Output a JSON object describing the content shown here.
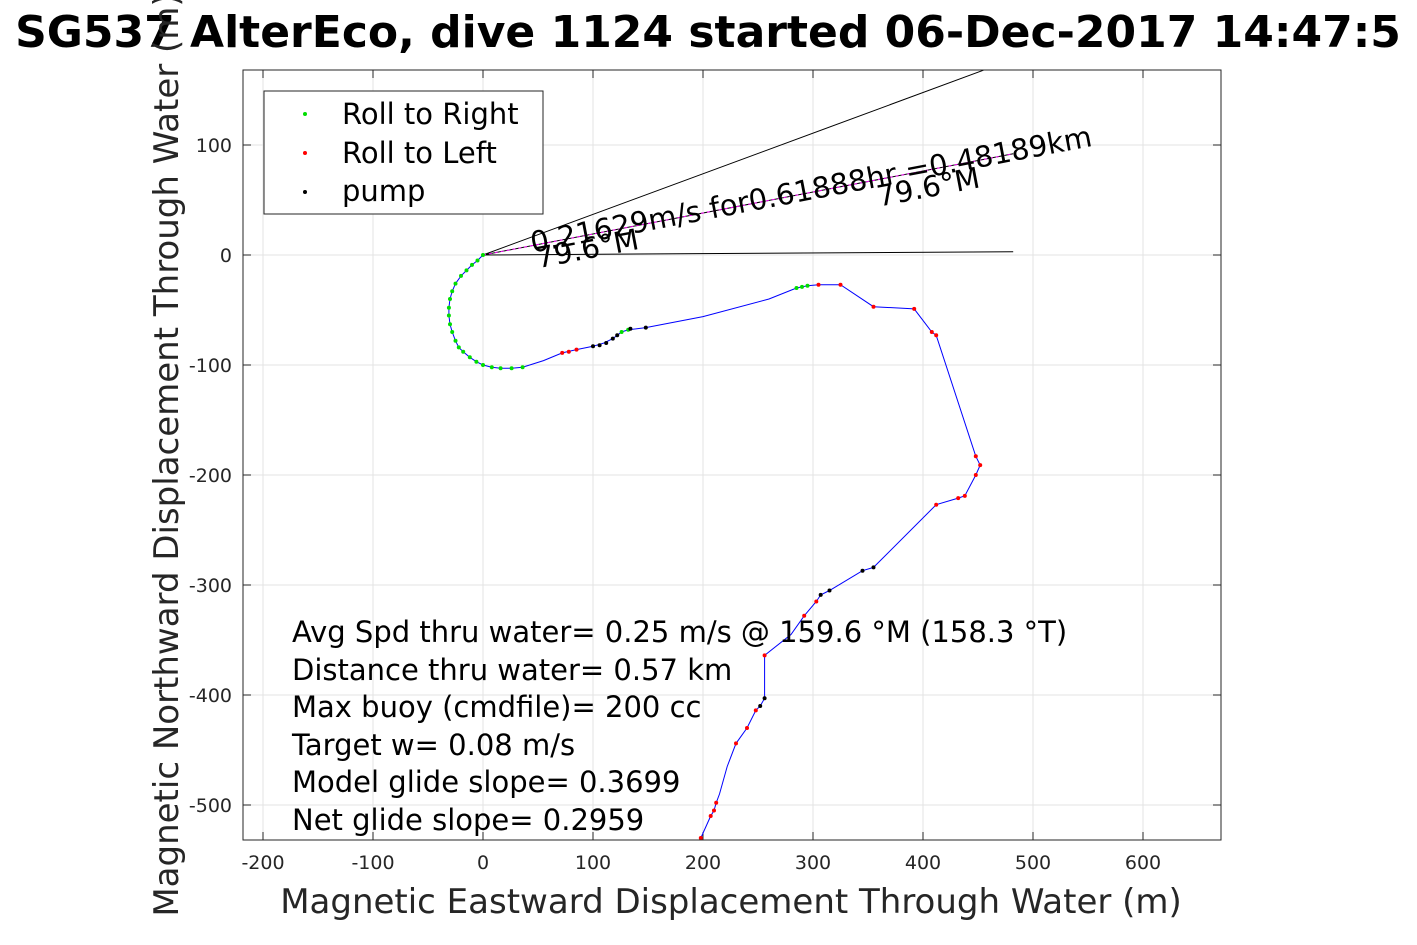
{
  "chart_data": {
    "type": "scatter",
    "title": "SG537 AlterEco, dive 1124 started 06-Dec-2017 14:47:5",
    "xlabel": "Magnetic Eastward Displacement Through Water (m)",
    "ylabel": "Magnetic Northward Displacement Through Water (m)",
    "xlim": [
      -220,
      670
    ],
    "ylim": [
      -530,
      168
    ],
    "xticks": [
      -200,
      -100,
      0,
      100,
      200,
      300,
      400,
      500,
      600
    ],
    "yticks": [
      -500,
      -400,
      -300,
      -200,
      -100,
      0,
      100
    ],
    "grid": true,
    "legend_position": "top-left",
    "legend": [
      "Roll to Right",
      "Roll to Left",
      "pump"
    ],
    "track": [
      [
        0,
        0
      ],
      [
        -5,
        -5
      ],
      [
        -10,
        -9
      ],
      [
        -15,
        -14
      ],
      [
        -20,
        -19
      ],
      [
        -25,
        -26
      ],
      [
        -28,
        -33
      ],
      [
        -30,
        -40
      ],
      [
        -31,
        -48
      ],
      [
        -31,
        -55
      ],
      [
        -30,
        -63
      ],
      [
        -28,
        -70
      ],
      [
        -25,
        -78
      ],
      [
        -22,
        -84
      ],
      [
        -18,
        -88
      ],
      [
        -12,
        -93
      ],
      [
        -6,
        -97
      ],
      [
        0,
        -100
      ],
      [
        8,
        -102
      ],
      [
        16,
        -103
      ],
      [
        26,
        -103
      ],
      [
        36,
        -102
      ],
      [
        55,
        -96
      ],
      [
        72,
        -89
      ],
      [
        85,
        -86
      ],
      [
        100,
        -83
      ],
      [
        110,
        -80
      ],
      [
        118,
        -76
      ],
      [
        122,
        -73
      ],
      [
        126,
        -70
      ],
      [
        132,
        -68
      ],
      [
        148,
        -66
      ],
      [
        200,
        -56
      ],
      [
        260,
        -40
      ],
      [
        285,
        -30
      ],
      [
        295,
        -28
      ],
      [
        305,
        -27
      ],
      [
        325,
        -27
      ],
      [
        355,
        -47
      ],
      [
        392,
        -49
      ],
      [
        408,
        -70
      ],
      [
        412,
        -73
      ],
      [
        448,
        -183
      ],
      [
        452,
        -191
      ],
      [
        448,
        -200
      ],
      [
        438,
        -219
      ],
      [
        432,
        -221
      ],
      [
        412,
        -227
      ],
      [
        355,
        -284
      ],
      [
        345,
        -287
      ],
      [
        315,
        -305
      ],
      [
        307,
        -309
      ],
      [
        303,
        -315
      ],
      [
        292,
        -328
      ],
      [
        280,
        -345
      ],
      [
        256,
        -364
      ],
      [
        256,
        -403
      ],
      [
        252,
        -410
      ],
      [
        248,
        -414
      ],
      [
        240,
        -430
      ],
      [
        230,
        -444
      ],
      [
        222,
        -465
      ],
      [
        215,
        -490
      ],
      [
        212,
        -498
      ],
      [
        210,
        -505
      ],
      [
        207,
        -510
      ],
      [
        198,
        -530
      ]
    ],
    "roll_to_right": [
      [
        0,
        0
      ],
      [
        -5,
        -5
      ],
      [
        -10,
        -9
      ],
      [
        -15,
        -14
      ],
      [
        -20,
        -19
      ],
      [
        -25,
        -26
      ],
      [
        -28,
        -33
      ],
      [
        -30,
        -40
      ],
      [
        -31,
        -48
      ],
      [
        -31,
        -55
      ],
      [
        -30,
        -63
      ],
      [
        -28,
        -70
      ],
      [
        -25,
        -78
      ],
      [
        -22,
        -84
      ],
      [
        -18,
        -88
      ],
      [
        -12,
        -93
      ],
      [
        -6,
        -97
      ],
      [
        0,
        -100
      ],
      [
        8,
        -102
      ],
      [
        16,
        -103
      ],
      [
        26,
        -103
      ],
      [
        36,
        -102
      ],
      [
        126,
        -70
      ],
      [
        132,
        -68
      ],
      [
        285,
        -30
      ],
      [
        290,
        -29
      ],
      [
        295,
        -28
      ]
    ],
    "roll_to_left": [
      [
        72,
        -89
      ],
      [
        78,
        -88
      ],
      [
        85,
        -86
      ],
      [
        305,
        -27
      ],
      [
        325,
        -27
      ],
      [
        355,
        -47
      ],
      [
        392,
        -49
      ],
      [
        408,
        -70
      ],
      [
        412,
        -73
      ],
      [
        448,
        -183
      ],
      [
        452,
        -191
      ],
      [
        448,
        -200
      ],
      [
        438,
        -219
      ],
      [
        432,
        -221
      ],
      [
        412,
        -227
      ],
      [
        303,
        -315
      ],
      [
        292,
        -328
      ],
      [
        256,
        -364
      ],
      [
        248,
        -414
      ],
      [
        240,
        -430
      ],
      [
        230,
        -444
      ],
      [
        212,
        -498
      ],
      [
        210,
        -505
      ],
      [
        207,
        -510
      ],
      [
        198,
        -530
      ]
    ],
    "pump": [
      [
        100,
        -83
      ],
      [
        106,
        -82
      ],
      [
        112,
        -80
      ],
      [
        118,
        -76
      ],
      [
        122,
        -73
      ],
      [
        134,
        -67
      ],
      [
        148,
        -66
      ],
      [
        345,
        -287
      ],
      [
        355,
        -284
      ],
      [
        307,
        -309
      ],
      [
        315,
        -305
      ],
      [
        256,
        -403
      ],
      [
        252,
        -410
      ]
    ],
    "heading_lines": [
      {
        "x": [
          0,
          482
        ],
        "y": [
          0,
          3
        ]
      },
      {
        "x": [
          0,
          482
        ],
        "y": [
          0,
          92
        ]
      },
      {
        "x": [
          0,
          455
        ],
        "y": [
          0,
          168
        ]
      }
    ],
    "annotations": [
      {
        "text": "0.21629m/s for0.61888hr =0.48189km",
        "x": 45,
        "y": 2,
        "angle": -10.8
      },
      {
        "text": "79.6°M",
        "x": 50,
        "y": -12,
        "angle": -10.8
      },
      {
        "text": "79.6°M",
        "x": 360,
        "y": 44,
        "angle": -10.8
      }
    ],
    "stats": [
      "Avg Spd thru water=  0.25 m/s @ 159.6 °M (158.3 °T)",
      "Distance thru water=  0.57 km",
      "Max buoy (cmdfile)= 200 cc",
      "Target w= 0.08 m/s",
      "Model glide slope= 0.3699",
      "Net glide slope= 0.2959"
    ],
    "colors": {
      "track": "#0000ff",
      "roll_to_right": "#00dd00",
      "roll_to_left": "#ff0000",
      "pump": "#000000",
      "heading_line": "#000000",
      "speed_line": "#ff00ff"
    }
  }
}
